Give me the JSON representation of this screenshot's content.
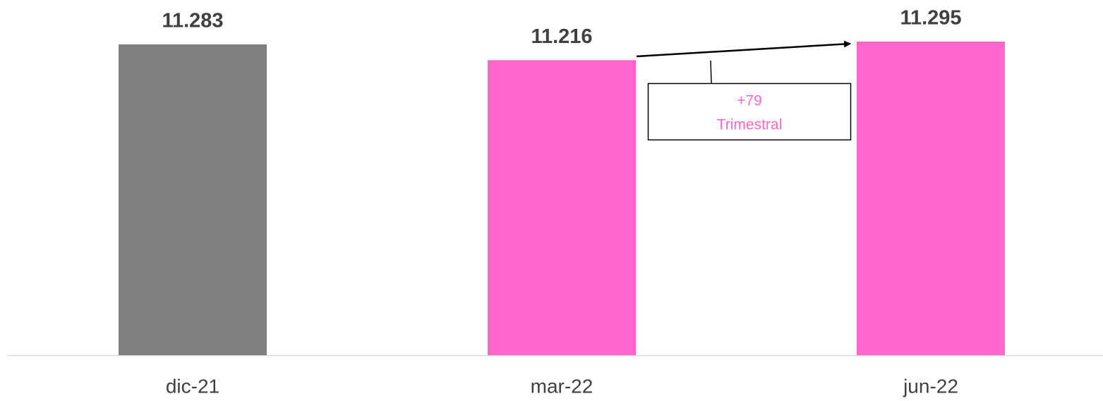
{
  "chart_data": {
    "type": "bar",
    "categories": [
      "dic-21",
      "mar-22",
      "jun-22"
    ],
    "values": [
      11283,
      11216,
      11295
    ],
    "value_labels": [
      "11.283",
      "11.216",
      "11.295"
    ],
    "colors": [
      "#808080",
      "#ff66cc",
      "#ff66cc"
    ],
    "ylim": [
      9960,
      11472
    ],
    "annotations": [
      "+79",
      "Trimestral"
    ]
  }
}
